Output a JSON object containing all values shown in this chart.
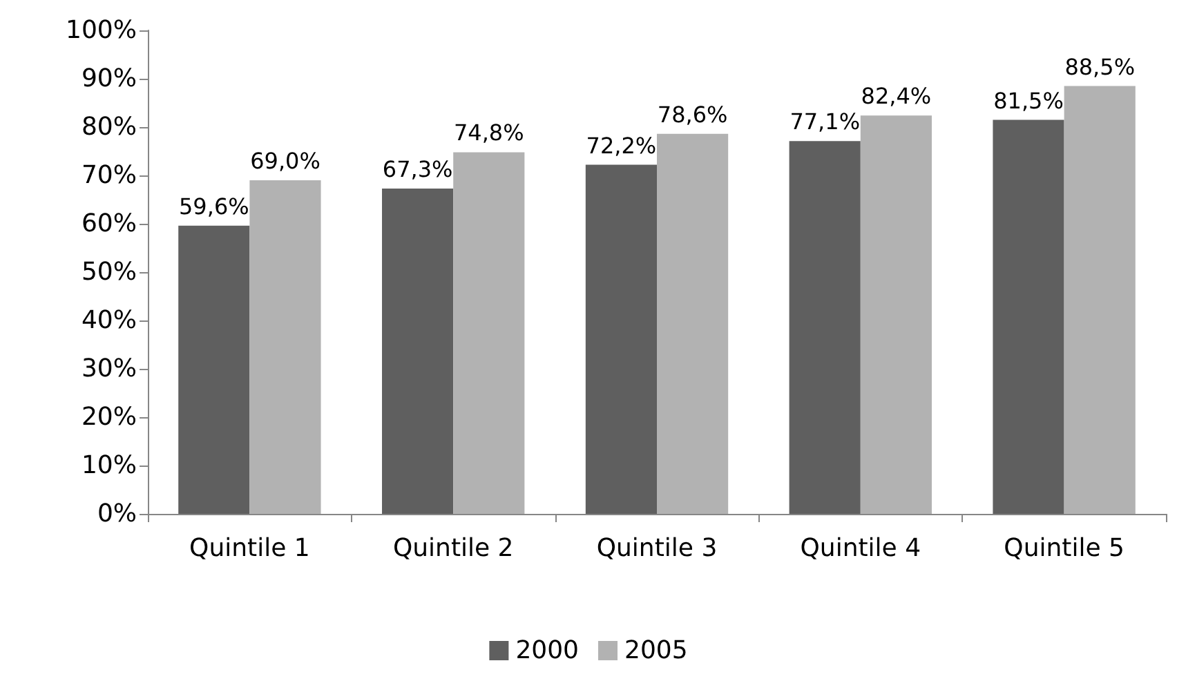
{
  "chart_data": {
    "type": "bar",
    "categories": [
      "Quintile 1",
      "Quintile 2",
      "Quintile 3",
      "Quintile 4",
      "Quintile 5"
    ],
    "series": [
      {
        "name": "2000",
        "color": "#5f5f5f",
        "values": [
          59.6,
          67.3,
          72.2,
          77.1,
          81.5
        ],
        "value_labels": [
          "59,6%",
          "67,3%",
          "72,2%",
          "77,1%",
          "81,5%"
        ]
      },
      {
        "name": "2005",
        "color": "#b2b2b2",
        "values": [
          69.0,
          74.8,
          78.6,
          82.4,
          88.5
        ],
        "value_labels": [
          "69,0%",
          "74,8%",
          "78,6%",
          "82,4%",
          "88,5%"
        ]
      }
    ],
    "ylim": [
      0,
      100
    ],
    "yticks": [
      {
        "value": 0,
        "label": "0%"
      },
      {
        "value": 10,
        "label": "10%"
      },
      {
        "value": 20,
        "label": "20%"
      },
      {
        "value": 30,
        "label": "30%"
      },
      {
        "value": 40,
        "label": "40%"
      },
      {
        "value": 50,
        "label": "50%"
      },
      {
        "value": 60,
        "label": "60%"
      },
      {
        "value": 70,
        "label": "70%"
      },
      {
        "value": 80,
        "label": "80%"
      },
      {
        "value": 90,
        "label": "90%"
      },
      {
        "value": 100,
        "label": "100%"
      }
    ],
    "grid": false,
    "legend": "bottom"
  }
}
